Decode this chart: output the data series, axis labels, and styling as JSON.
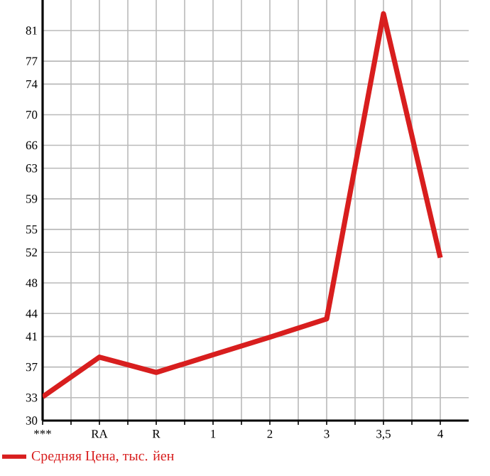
{
  "chart_data": {
    "type": "line",
    "categories": [
      "***",
      "RA",
      "R",
      "1",
      "2",
      "3",
      "3,5",
      "4"
    ],
    "series": [
      {
        "name": "Средняя Цена, тыс. йен",
        "color": "#d81e1e",
        "values": [
          33.1,
          38.3,
          36.3,
          38.6,
          40.9,
          43.3,
          83.2,
          51.3
        ]
      }
    ],
    "ylim": [
      30,
      85
    ],
    "yticks": [
      30,
      33,
      37,
      41,
      44,
      48,
      52,
      55,
      59,
      63,
      66,
      70,
      74,
      77,
      81
    ],
    "grid": true,
    "legend": "bottom",
    "marker": "none",
    "line_style": "solid"
  }
}
